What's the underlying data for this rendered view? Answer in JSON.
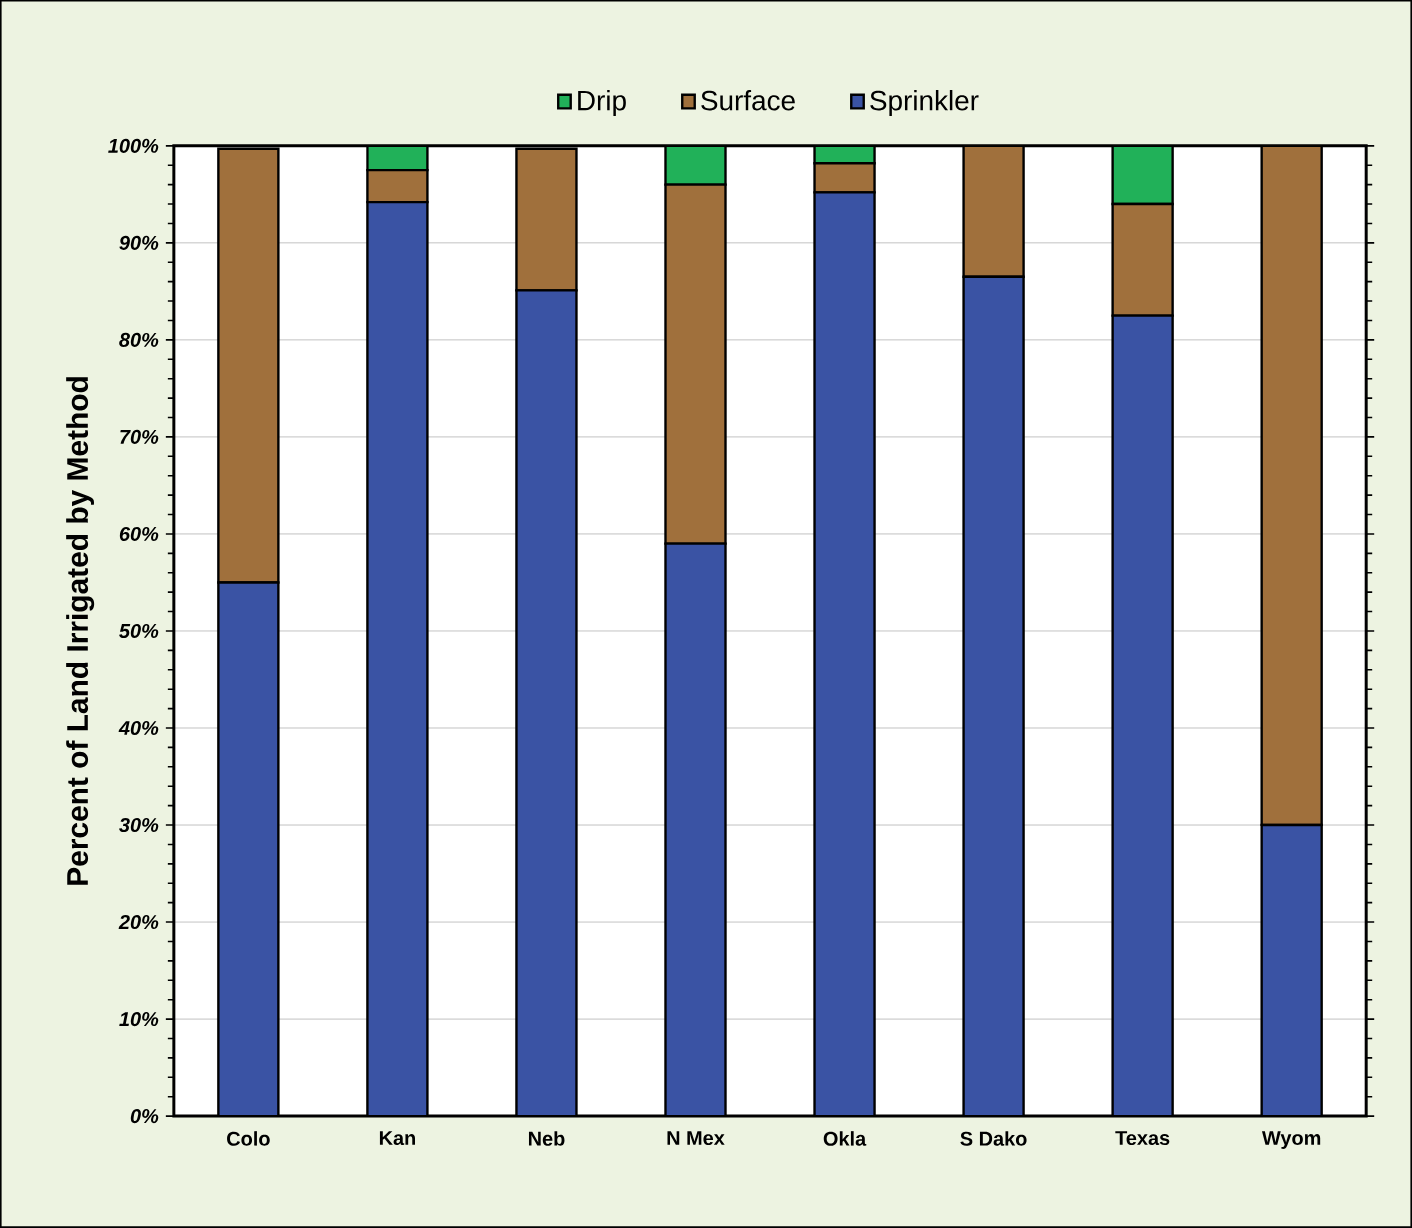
{
  "chart_data": {
    "type": "bar",
    "stacked": true,
    "ylabel": "Percent of Land Irrigated by Method",
    "categories": [
      "Colo",
      "Kan",
      "Neb",
      "N Mex",
      "Okla",
      "S Dako",
      "Texas",
      "Wyom"
    ],
    "series": [
      {
        "name": "Sprinkler",
        "color": "#3a53a4",
        "values": [
          55,
          94.2,
          85.1,
          59,
          95.2,
          86.5,
          82.5,
          30
        ]
      },
      {
        "name": "Surface",
        "color": "#a0703c",
        "values": [
          44.7,
          3.3,
          14.6,
          37,
          3,
          13.5,
          11.5,
          70
        ]
      },
      {
        "name": "Drip",
        "color": "#21b159",
        "values": [
          0,
          2.5,
          0,
          4,
          1.8,
          0,
          6,
          0
        ]
      }
    ],
    "ylim": [
      0,
      100
    ],
    "yticks": [
      {
        "value": 0,
        "label": "0%"
      },
      {
        "value": 10,
        "label": "10%"
      },
      {
        "value": 20,
        "label": "20%"
      },
      {
        "value": 30,
        "label": "30%"
      },
      {
        "value": 40,
        "label": "40%"
      },
      {
        "value": 50,
        "label": "50%"
      },
      {
        "value": 60,
        "label": "60%"
      },
      {
        "value": 70,
        "label": "70%"
      },
      {
        "value": 80,
        "label": "80%"
      },
      {
        "value": 90,
        "label": "90%"
      },
      {
        "value": 100,
        "label": "100%"
      }
    ],
    "grid": "y",
    "legend": "top"
  }
}
